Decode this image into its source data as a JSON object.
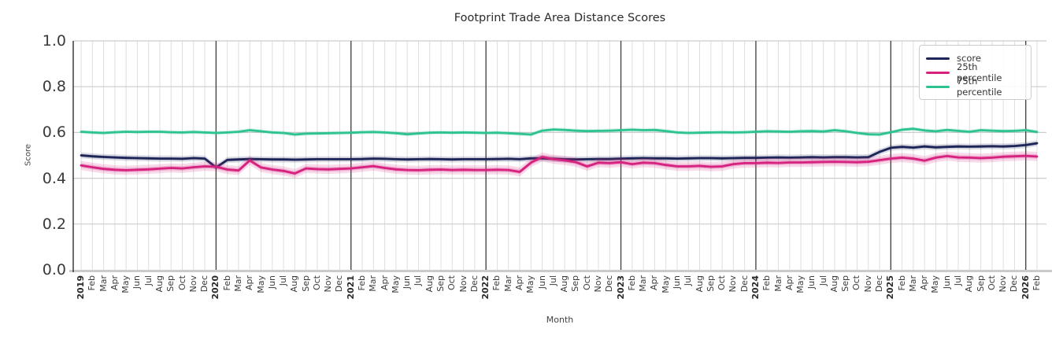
{
  "chart_data": {
    "type": "line",
    "title": "Footprint Trade Area Distance Scores",
    "xlabel": "Month",
    "ylabel": "Score",
    "ylim": [
      0.0,
      1.0
    ],
    "ytick_labels": [
      "0.0",
      "0.2",
      "0.4",
      "0.6",
      "0.8",
      "1.0"
    ],
    "grid": "on",
    "legend_position": "upper right",
    "x": [
      "2019",
      "Feb",
      "Mar",
      "Apr",
      "May",
      "Jun",
      "Jul",
      "Aug",
      "Sep",
      "Oct",
      "Nov",
      "Dec",
      "2020",
      "Feb",
      "Mar",
      "Apr",
      "May",
      "Jun",
      "Jul",
      "Aug",
      "Sep",
      "Oct",
      "Nov",
      "Dec",
      "2021",
      "Feb",
      "Mar",
      "Apr",
      "May",
      "Jun",
      "Jul",
      "Aug",
      "Sep",
      "Oct",
      "Nov",
      "Dec",
      "2022",
      "Feb",
      "Mar",
      "Apr",
      "May",
      "Jun",
      "Jul",
      "Aug",
      "Sep",
      "Oct",
      "Nov",
      "Dec",
      "2023",
      "Feb",
      "Mar",
      "Apr",
      "May",
      "Jun",
      "Jul",
      "Aug",
      "Sep",
      "Oct",
      "Nov",
      "Dec",
      "2024",
      "Feb",
      "Mar",
      "Apr",
      "May",
      "Jun",
      "Jul",
      "Aug",
      "Sep",
      "Oct",
      "Nov",
      "Dec",
      "2025",
      "Feb",
      "Mar",
      "Apr",
      "May",
      "Jun",
      "Jul",
      "Aug",
      "Sep",
      "Oct",
      "Nov",
      "Dec",
      "2026",
      "Feb"
    ],
    "year_line_indices": [
      12,
      24,
      36,
      48,
      60,
      72,
      84
    ],
    "series": [
      {
        "name": "score",
        "color": "#1e2558",
        "band": 0.013,
        "values": [
          0.5,
          0.496,
          0.493,
          0.491,
          0.489,
          0.488,
          0.487,
          0.486,
          0.486,
          0.485,
          0.488,
          0.486,
          0.447,
          0.48,
          0.482,
          0.484,
          0.483,
          0.482,
          0.482,
          0.481,
          0.482,
          0.483,
          0.483,
          0.483,
          0.483,
          0.484,
          0.486,
          0.485,
          0.483,
          0.482,
          0.483,
          0.484,
          0.483,
          0.482,
          0.483,
          0.483,
          0.483,
          0.484,
          0.485,
          0.483,
          0.487,
          0.487,
          0.485,
          0.483,
          0.482,
          0.483,
          0.484,
          0.484,
          0.486,
          0.487,
          0.488,
          0.487,
          0.487,
          0.486,
          0.487,
          0.488,
          0.488,
          0.487,
          0.488,
          0.489,
          0.489,
          0.49,
          0.491,
          0.49,
          0.491,
          0.492,
          0.491,
          0.492,
          0.492,
          0.491,
          0.492,
          0.515,
          0.533,
          0.537,
          0.534,
          0.539,
          0.535,
          0.537,
          0.539,
          0.538,
          0.539,
          0.54,
          0.539,
          0.541,
          0.545,
          0.553
        ]
      },
      {
        "name": "25th percentile",
        "color": "#d6217f",
        "band": 0.02,
        "values": [
          0.456,
          0.448,
          0.441,
          0.437,
          0.435,
          0.437,
          0.439,
          0.442,
          0.445,
          0.443,
          0.448,
          0.452,
          0.45,
          0.438,
          0.434,
          0.478,
          0.447,
          0.438,
          0.432,
          0.421,
          0.443,
          0.44,
          0.439,
          0.441,
          0.443,
          0.448,
          0.453,
          0.445,
          0.439,
          0.436,
          0.435,
          0.437,
          0.438,
          0.436,
          0.437,
          0.436,
          0.436,
          0.437,
          0.436,
          0.428,
          0.468,
          0.493,
          0.483,
          0.478,
          0.47,
          0.452,
          0.468,
          0.466,
          0.47,
          0.462,
          0.468,
          0.466,
          0.458,
          0.452,
          0.452,
          0.454,
          0.45,
          0.452,
          0.462,
          0.466,
          0.466,
          0.468,
          0.467,
          0.469,
          0.469,
          0.47,
          0.471,
          0.472,
          0.471,
          0.47,
          0.472,
          0.479,
          0.486,
          0.49,
          0.486,
          0.477,
          0.49,
          0.497,
          0.491,
          0.49,
          0.488,
          0.49,
          0.494,
          0.496,
          0.498,
          0.495
        ]
      },
      {
        "name": "75th percentile",
        "color": "#2cc390",
        "band": 0.009,
        "values": [
          0.603,
          0.6,
          0.598,
          0.601,
          0.603,
          0.602,
          0.603,
          0.603,
          0.601,
          0.6,
          0.602,
          0.6,
          0.598,
          0.6,
          0.603,
          0.61,
          0.605,
          0.6,
          0.598,
          0.591,
          0.595,
          0.596,
          0.597,
          0.598,
          0.599,
          0.601,
          0.602,
          0.6,
          0.597,
          0.592,
          0.596,
          0.599,
          0.6,
          0.599,
          0.6,
          0.599,
          0.598,
          0.599,
          0.597,
          0.594,
          0.591,
          0.608,
          0.613,
          0.611,
          0.608,
          0.606,
          0.607,
          0.608,
          0.61,
          0.612,
          0.61,
          0.611,
          0.606,
          0.6,
          0.598,
          0.599,
          0.6,
          0.601,
          0.6,
          0.601,
          0.603,
          0.605,
          0.604,
          0.603,
          0.605,
          0.606,
          0.604,
          0.61,
          0.605,
          0.598,
          0.592,
          0.591,
          0.601,
          0.612,
          0.616,
          0.609,
          0.605,
          0.611,
          0.607,
          0.603,
          0.61,
          0.608,
          0.606,
          0.607,
          0.61,
          0.602
        ]
      }
    ],
    "colors": {
      "month_grid": "#dedede",
      "major_grid": "#cccccc",
      "year_line": "#3d3d3d",
      "bottom_spine": "#cacaca",
      "left_spine": "#2e2e2e"
    }
  }
}
